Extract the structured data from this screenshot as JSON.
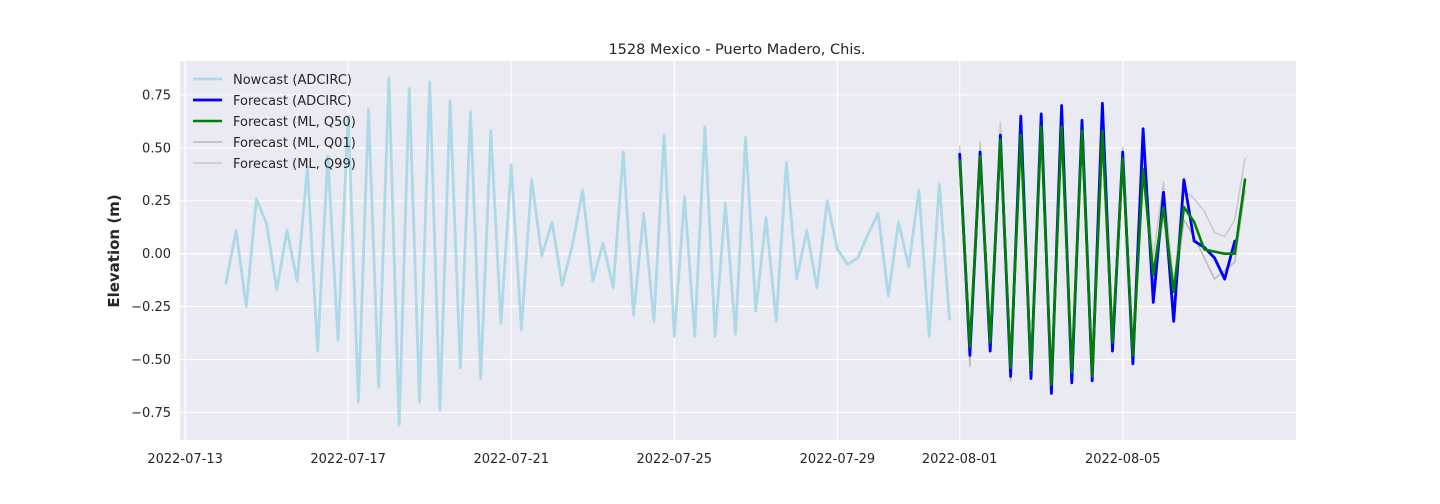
{
  "chart_data": {
    "type": "line",
    "title": "1528 Mexico - Puerto Madero, Chis.",
    "xlabel": "",
    "ylabel": "Elevation (m)",
    "xlim": [
      "2022-07-12T21:00",
      "2022-08-09T06:00"
    ],
    "ylim": [
      -0.88,
      0.91
    ],
    "x_ticks": [
      "2022-07-13",
      "2022-07-17",
      "2022-07-21",
      "2022-07-25",
      "2022-07-29",
      "2022-08-01",
      "2022-08-05"
    ],
    "y_ticks": [
      -0.75,
      -0.5,
      -0.25,
      0.0,
      0.25,
      0.5,
      0.75
    ],
    "y_tick_labels": [
      "−0.75",
      "−0.50",
      "−0.25",
      "0.00",
      "0.25",
      "0.50",
      "0.75"
    ],
    "grid": true,
    "legend_position": "top-left",
    "background": "#eaeaf2",
    "series": [
      {
        "name": "Nowcast (ADCIRC)",
        "color": "#add8e6",
        "x": [
          "2022-07-14T00:00",
          "2022-07-14T06:00",
          "2022-07-14T12:00",
          "2022-07-14T18:00",
          "2022-07-15T00:00",
          "2022-07-15T06:00",
          "2022-07-15T12:00",
          "2022-07-15T18:00",
          "2022-07-16T00:00",
          "2022-07-16T06:00",
          "2022-07-16T12:00",
          "2022-07-16T18:00",
          "2022-07-17T00:00",
          "2022-07-17T06:00",
          "2022-07-17T12:00",
          "2022-07-17T18:00",
          "2022-07-18T00:00",
          "2022-07-18T06:00",
          "2022-07-18T12:00",
          "2022-07-18T18:00",
          "2022-07-19T00:00",
          "2022-07-19T06:00",
          "2022-07-19T12:00",
          "2022-07-19T18:00",
          "2022-07-20T00:00",
          "2022-07-20T06:00",
          "2022-07-20T12:00",
          "2022-07-20T18:00",
          "2022-07-21T00:00",
          "2022-07-21T06:00",
          "2022-07-21T12:00",
          "2022-07-21T18:00",
          "2022-07-22T00:00",
          "2022-07-22T06:00",
          "2022-07-22T12:00",
          "2022-07-22T18:00",
          "2022-07-23T00:00",
          "2022-07-23T06:00",
          "2022-07-23T12:00",
          "2022-07-23T18:00",
          "2022-07-24T00:00",
          "2022-07-24T06:00",
          "2022-07-24T12:00",
          "2022-07-24T18:00",
          "2022-07-25T00:00",
          "2022-07-25T06:00",
          "2022-07-25T12:00",
          "2022-07-25T18:00",
          "2022-07-26T00:00",
          "2022-07-26T06:00",
          "2022-07-26T12:00",
          "2022-07-26T18:00",
          "2022-07-27T00:00",
          "2022-07-27T06:00",
          "2022-07-27T12:00",
          "2022-07-27T18:00",
          "2022-07-28T00:00",
          "2022-07-28T06:00",
          "2022-07-28T12:00",
          "2022-07-28T18:00",
          "2022-07-29T00:00",
          "2022-07-29T06:00",
          "2022-07-29T12:00",
          "2022-07-29T18:00",
          "2022-07-30T00:00",
          "2022-07-30T06:00",
          "2022-07-30T12:00",
          "2022-07-30T18:00",
          "2022-07-31T00:00",
          "2022-07-31T06:00",
          "2022-07-31T12:00",
          "2022-07-31T18:00"
        ],
        "values": [
          -0.14,
          0.11,
          -0.25,
          0.26,
          0.14,
          -0.17,
          0.11,
          -0.13,
          0.41,
          -0.46,
          0.46,
          -0.41,
          0.65,
          -0.7,
          0.68,
          -0.63,
          0.83,
          -0.81,
          0.78,
          -0.7,
          0.81,
          -0.74,
          0.72,
          -0.54,
          0.67,
          -0.59,
          0.58,
          -0.33,
          0.42,
          -0.36,
          0.35,
          -0.01,
          0.15,
          -0.15,
          0.04,
          0.3,
          -0.13,
          0.05,
          -0.16,
          0.48,
          -0.29,
          0.19,
          -0.32,
          0.56,
          -0.39,
          0.27,
          -0.39,
          0.6,
          -0.39,
          0.24,
          -0.38,
          0.55,
          -0.27,
          0.17,
          -0.32,
          0.43,
          -0.12,
          0.11,
          -0.16,
          0.25,
          0.02,
          -0.05,
          -0.02,
          0.09,
          0.19,
          -0.2,
          0.15,
          -0.06,
          0.3,
          -0.39,
          0.33,
          -0.31
        ]
      },
      {
        "name": "Forecast (ADCIRC)",
        "color": "#0000ff",
        "x": [
          "2022-08-01T00:00",
          "2022-08-01T06:00",
          "2022-08-01T12:00",
          "2022-08-01T18:00",
          "2022-08-02T00:00",
          "2022-08-02T06:00",
          "2022-08-02T12:00",
          "2022-08-02T18:00",
          "2022-08-03T00:00",
          "2022-08-03T06:00",
          "2022-08-03T12:00",
          "2022-08-03T18:00",
          "2022-08-04T00:00",
          "2022-08-04T06:00",
          "2022-08-04T12:00",
          "2022-08-04T18:00",
          "2022-08-05T00:00",
          "2022-08-05T06:00",
          "2022-08-05T12:00",
          "2022-08-05T18:00",
          "2022-08-06T00:00",
          "2022-08-06T06:00",
          "2022-08-06T12:00",
          "2022-08-06T18:00",
          "2022-08-07T00:00",
          "2022-08-07T06:00",
          "2022-08-07T12:00",
          "2022-08-07T18:00"
        ],
        "values": [
          0.47,
          -0.48,
          0.48,
          -0.46,
          0.56,
          -0.58,
          0.65,
          -0.59,
          0.66,
          -0.66,
          0.7,
          -0.61,
          0.63,
          -0.6,
          0.71,
          -0.46,
          0.48,
          -0.52,
          0.59,
          -0.23,
          0.29,
          -0.32,
          0.35,
          0.06,
          0.03,
          -0.02,
          -0.12,
          0.06
        ]
      },
      {
        "name": "Forecast (ML, Q50)",
        "color": "#008000",
        "x": [
          "2022-08-01T00:00",
          "2022-08-01T06:00",
          "2022-08-01T12:00",
          "2022-08-01T18:00",
          "2022-08-02T00:00",
          "2022-08-02T06:00",
          "2022-08-02T12:00",
          "2022-08-02T18:00",
          "2022-08-03T00:00",
          "2022-08-03T06:00",
          "2022-08-03T12:00",
          "2022-08-03T18:00",
          "2022-08-04T00:00",
          "2022-08-04T06:00",
          "2022-08-04T12:00",
          "2022-08-04T18:00",
          "2022-08-05T00:00",
          "2022-08-05T06:00",
          "2022-08-05T12:00",
          "2022-08-05T18:00",
          "2022-08-06T00:00",
          "2022-08-06T06:00",
          "2022-08-06T12:00",
          "2022-08-06T18:00",
          "2022-08-07T00:00",
          "2022-08-07T06:00",
          "2022-08-07T12:00",
          "2022-08-07T18:00",
          "2022-08-08T00:00"
        ],
        "values": [
          0.44,
          -0.44,
          0.46,
          -0.42,
          0.54,
          -0.54,
          0.56,
          -0.55,
          0.6,
          -0.62,
          0.6,
          -0.56,
          0.58,
          -0.58,
          0.58,
          -0.42,
          0.45,
          -0.48,
          0.4,
          -0.1,
          0.22,
          -0.18,
          0.22,
          0.15,
          0.02,
          0.01,
          0.0,
          0.0,
          0.35
        ]
      },
      {
        "name": "Forecast (ML, Q01)",
        "color": "#b8b8b8",
        "x": [
          "2022-08-01T00:00",
          "2022-08-01T06:00",
          "2022-08-01T12:00",
          "2022-08-01T18:00",
          "2022-08-02T00:00",
          "2022-08-02T06:00",
          "2022-08-02T12:00",
          "2022-08-02T18:00",
          "2022-08-03T00:00",
          "2022-08-03T06:00",
          "2022-08-03T12:00",
          "2022-08-03T18:00",
          "2022-08-04T00:00",
          "2022-08-04T06:00",
          "2022-08-04T12:00",
          "2022-08-04T18:00",
          "2022-08-05T00:00",
          "2022-08-05T06:00",
          "2022-08-05T12:00",
          "2022-08-05T18:00",
          "2022-08-06T00:00",
          "2022-08-06T06:00",
          "2022-08-06T12:00",
          "2022-08-06T18:00",
          "2022-08-07T00:00",
          "2022-08-07T06:00",
          "2022-08-07T12:00",
          "2022-08-07T18:00",
          "2022-08-08T00:00"
        ],
        "values": [
          0.4,
          -0.53,
          0.42,
          -0.46,
          0.5,
          -0.6,
          0.52,
          -0.58,
          0.56,
          -0.64,
          0.55,
          -0.58,
          0.55,
          -0.6,
          0.52,
          -0.46,
          0.4,
          -0.52,
          0.38,
          -0.14,
          0.18,
          -0.24,
          0.16,
          0.08,
          -0.02,
          -0.12,
          -0.08,
          -0.04,
          0.3
        ]
      },
      {
        "name": "Forecast (ML, Q99)",
        "color": "#c8c8c8",
        "x": [
          "2022-08-01T00:00",
          "2022-08-01T06:00",
          "2022-08-01T12:00",
          "2022-08-01T18:00",
          "2022-08-02T00:00",
          "2022-08-02T06:00",
          "2022-08-02T12:00",
          "2022-08-02T18:00",
          "2022-08-03T00:00",
          "2022-08-03T06:00",
          "2022-08-03T12:00",
          "2022-08-03T18:00",
          "2022-08-04T00:00",
          "2022-08-04T06:00",
          "2022-08-04T12:00",
          "2022-08-04T18:00",
          "2022-08-05T00:00",
          "2022-08-05T06:00",
          "2022-08-05T12:00",
          "2022-08-05T18:00",
          "2022-08-06T00:00",
          "2022-08-06T06:00",
          "2022-08-06T12:00",
          "2022-08-06T18:00",
          "2022-08-07T00:00",
          "2022-08-07T06:00",
          "2022-08-07T12:00",
          "2022-08-07T18:00",
          "2022-08-08T00:00"
        ],
        "values": [
          0.51,
          -0.4,
          0.53,
          -0.38,
          0.62,
          -0.5,
          0.62,
          -0.5,
          0.64,
          -0.57,
          0.64,
          -0.52,
          0.62,
          -0.54,
          0.62,
          -0.38,
          0.5,
          -0.44,
          0.45,
          -0.02,
          0.34,
          -0.14,
          0.3,
          0.26,
          0.2,
          0.1,
          0.08,
          0.16,
          0.45
        ]
      }
    ]
  }
}
